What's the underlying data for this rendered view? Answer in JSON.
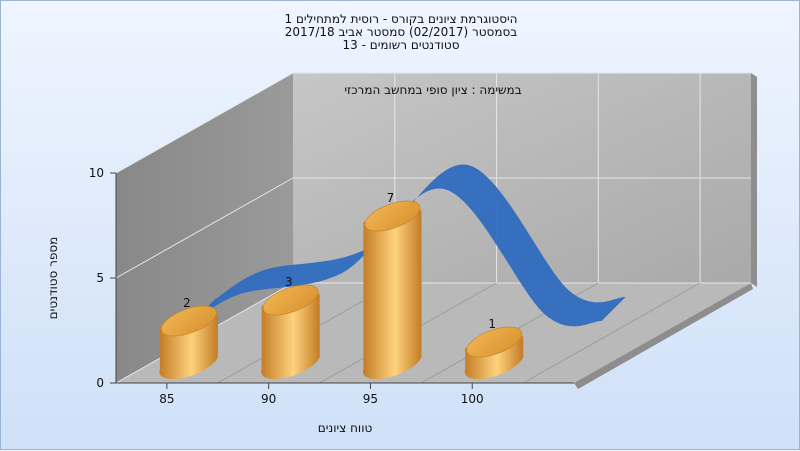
{
  "chart_data": {
    "type": "bar",
    "title_lines": [
      "היסטוגרמת ציונים בקורס - רוסית למתחילים 1",
      "בסמסטר  (02/2017)  סמסטר אביב 2017/18",
      "סטודנטים רשומים - 13"
    ],
    "subtitle": "במשימה : ציון סופי במחשב המרכזי",
    "xlabel": "טווח ציונים",
    "ylabel": "מספר סטודנטים",
    "categories": [
      "85",
      "90",
      "95",
      "100"
    ],
    "values": [
      2,
      3,
      7,
      1
    ],
    "data_labels": [
      "2",
      "3",
      "7",
      "1"
    ],
    "y_ticks": [
      "0",
      "5",
      "10"
    ],
    "ylim": [
      0,
      10
    ],
    "bar_color": "#e8a640",
    "ribbon_color": "#2f6bbf",
    "grid": true,
    "chart_style": "3d cylinder bars with smooth blue ribbon overlay"
  }
}
